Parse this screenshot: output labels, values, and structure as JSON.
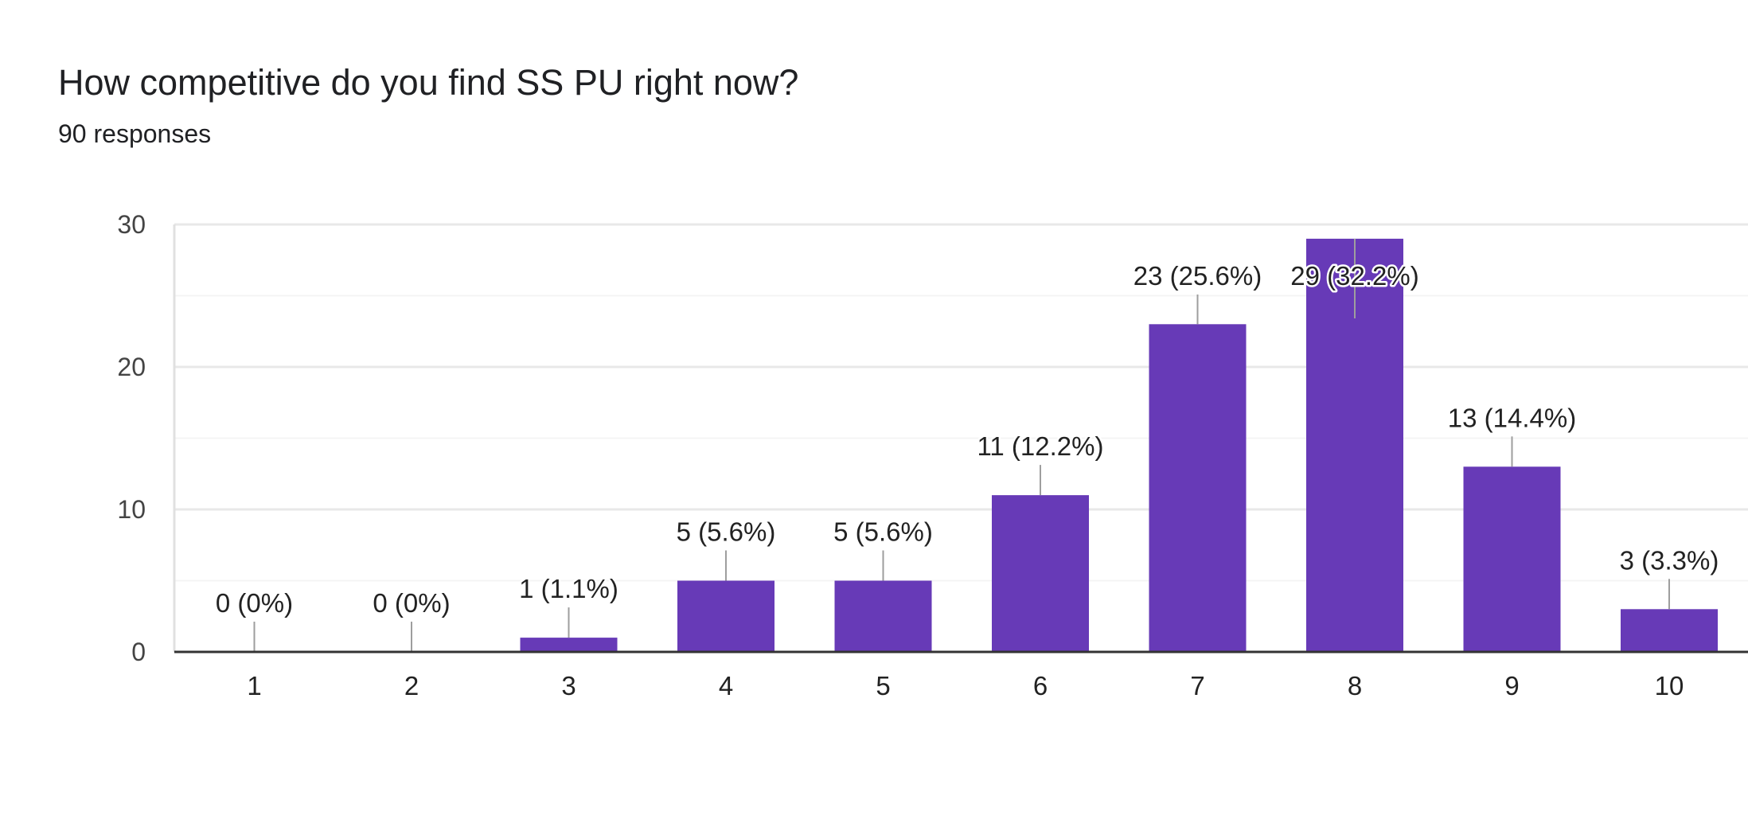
{
  "header": {
    "title": "How competitive do you find SS PU right now?",
    "subtitle": "90 responses"
  },
  "colors": {
    "bar": "#673ab7",
    "grid": "#eeeeee",
    "axis": "#333333",
    "leader": "#9e9e9e"
  },
  "chart_data": {
    "type": "bar",
    "title": "How competitive do you find SS PU right now?",
    "xlabel": "",
    "ylabel": "",
    "ylim": [
      0,
      30
    ],
    "yticks": [
      "0",
      "10",
      "20",
      "30"
    ],
    "grid": true,
    "categories": [
      "1",
      "2",
      "3",
      "4",
      "5",
      "6",
      "7",
      "8",
      "9",
      "10"
    ],
    "values": [
      0,
      0,
      1,
      5,
      5,
      11,
      23,
      29,
      13,
      3
    ],
    "labels": [
      "0 (0%)",
      "0 (0%)",
      "1 (1.1%)",
      "5 (5.6%)",
      "5 (5.6%)",
      "11 (12.2%)",
      "23 (25.6%)",
      "29 (32.2%)",
      "13 (14.4%)",
      "3 (3.3%)"
    ]
  }
}
